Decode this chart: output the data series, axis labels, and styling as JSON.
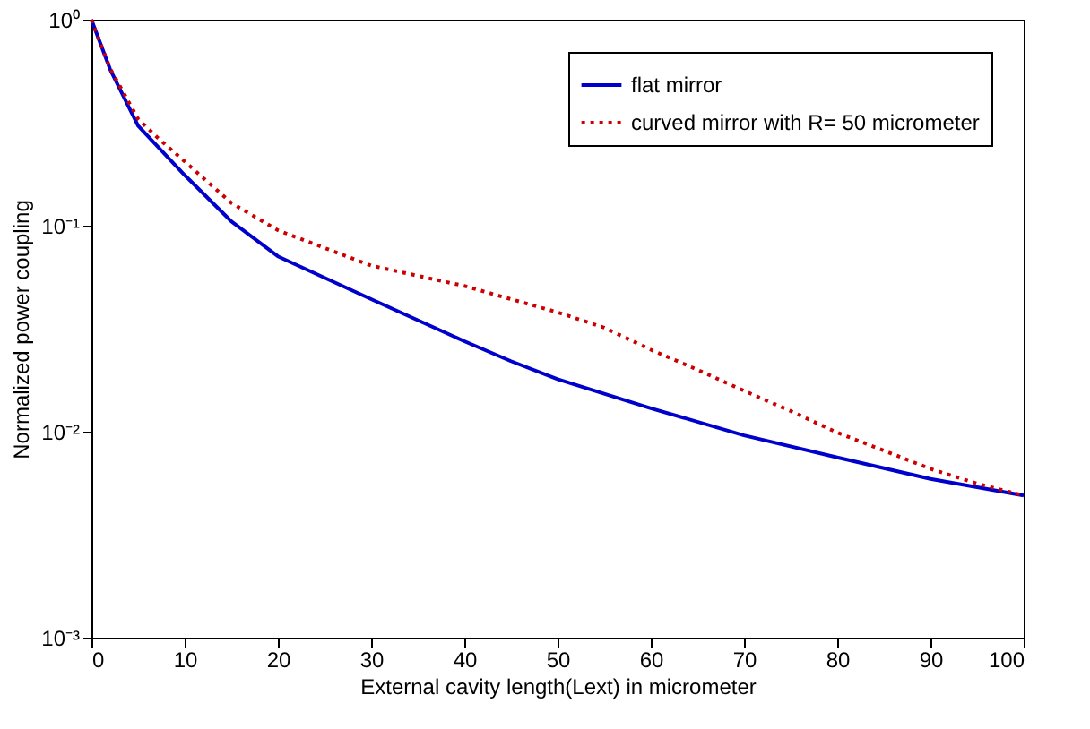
{
  "chart_data": {
    "type": "line",
    "xlabel": "External cavity length(Lext) in micrometer",
    "ylabel": "Normalized power coupling",
    "log": "y",
    "grid": false,
    "legend": "top right",
    "marker": "none",
    "xlim": [
      0,
      100
    ],
    "xticks": [
      0,
      10,
      20,
      30,
      40,
      50,
      60,
      70,
      80,
      90,
      100
    ],
    "ylim": [
      0.001,
      1
    ],
    "yticks": [
      {
        "value": 1,
        "label": "10⁰"
      },
      {
        "value": 0.1,
        "label": "10⁻¹"
      },
      {
        "value": 0.01,
        "label": "10⁻²"
      },
      {
        "value": 0.001,
        "label": "10⁻³"
      }
    ],
    "series": [
      {
        "name": "flat mirror",
        "color": "#0000cc",
        "line_style": "solid",
        "x": [
          0,
          2,
          5,
          10,
          15,
          20,
          30,
          40,
          45,
          50,
          60,
          70,
          80,
          90,
          100
        ],
        "values": [
          1,
          0.575,
          0.306,
          0.176,
          0.105,
          0.071,
          0.044,
          0.0275,
          0.022,
          0.018,
          0.013,
          0.0096,
          0.0075,
          0.0059,
          0.0049
        ]
      },
      {
        "name": "curved mirror with R= 50 micrometer",
        "color": "#cc0000",
        "line_style": "dotted",
        "x": [
          0,
          2,
          5,
          7,
          10,
          15,
          20,
          25,
          30,
          40,
          45,
          50,
          55,
          60,
          65,
          70,
          75,
          80,
          85,
          90,
          95,
          100
        ],
        "values": [
          1,
          0.58,
          0.33,
          0.27,
          0.205,
          0.129,
          0.095,
          0.078,
          0.064,
          0.051,
          0.044,
          0.038,
          0.032,
          0.025,
          0.02,
          0.0158,
          0.0126,
          0.0099,
          0.0081,
          0.0066,
          0.0056,
          0.0049
        ]
      }
    ]
  }
}
